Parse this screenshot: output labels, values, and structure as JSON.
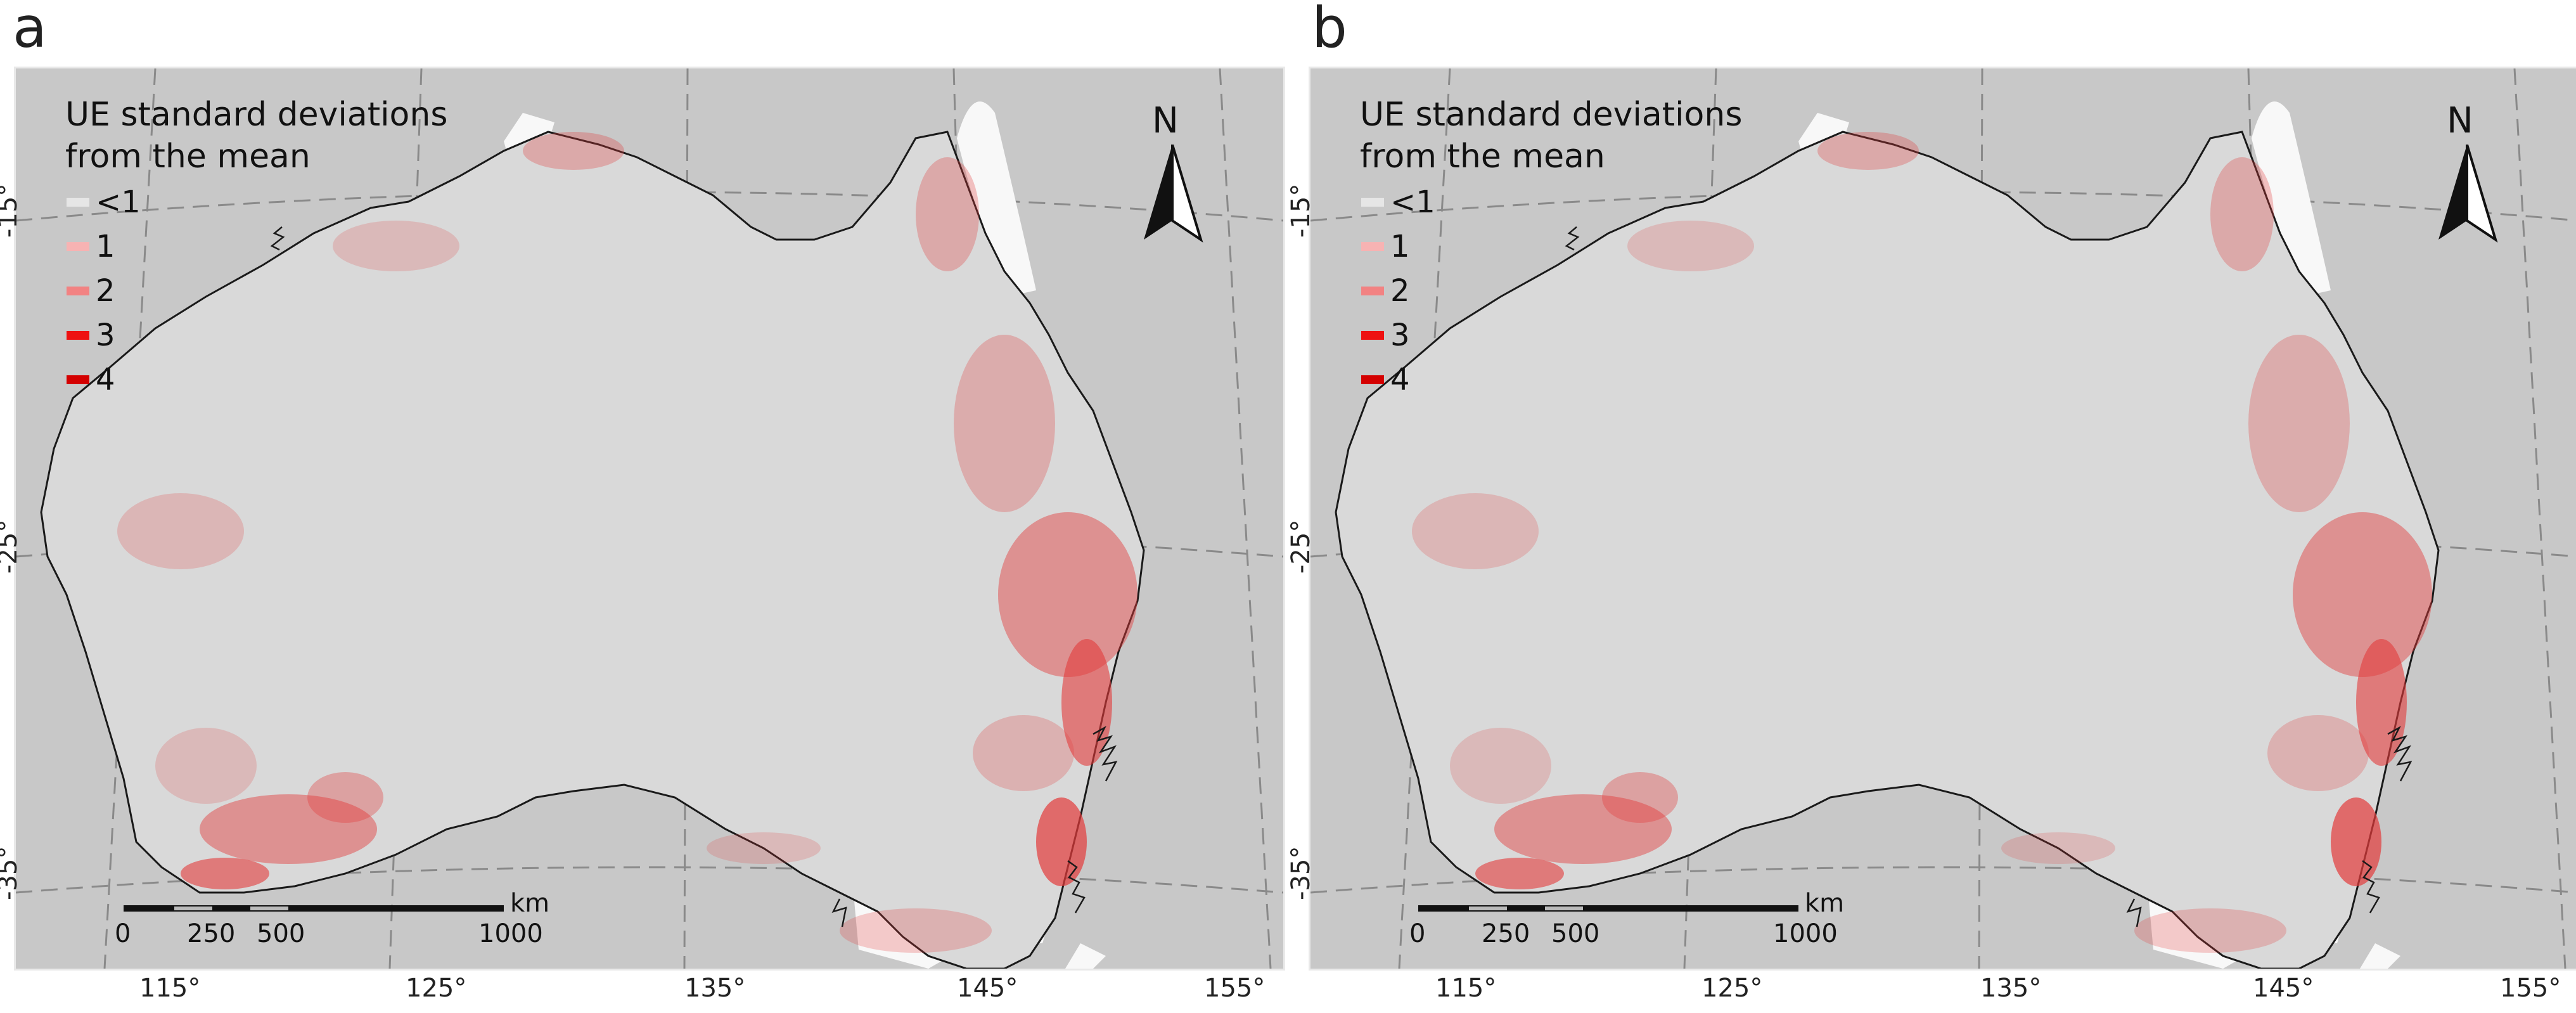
{
  "panels": [
    {
      "id": "a",
      "letter": "a"
    },
    {
      "id": "b",
      "letter": "b"
    }
  ],
  "legend": {
    "title_line1": "UE standard deviations",
    "title_line2": "from the mean",
    "items": [
      {
        "label": "<1",
        "color": "#e6e6e6"
      },
      {
        "label": "1",
        "color": "#f7b3b3"
      },
      {
        "label": "2",
        "color": "#f28282"
      },
      {
        "label": "3",
        "color": "#ee1111"
      },
      {
        "label": "4",
        "color": "#d40000"
      }
    ]
  },
  "north_label": "N",
  "scalebar": {
    "unit": "km",
    "labels": [
      "0",
      "250",
      "500",
      "1000"
    ]
  },
  "lat_labels": [
    "-15°",
    "-25°",
    "-35°"
  ],
  "lon_labels": [
    "115°",
    "125°",
    "135°",
    "145°",
    "155°"
  ],
  "colors": {
    "ocean": "#c8c8c8",
    "land": "#d9d9d9",
    "mask": "#f8f8f8",
    "hotspot": "#e23a3a",
    "coast": "#1a1a1a"
  }
}
